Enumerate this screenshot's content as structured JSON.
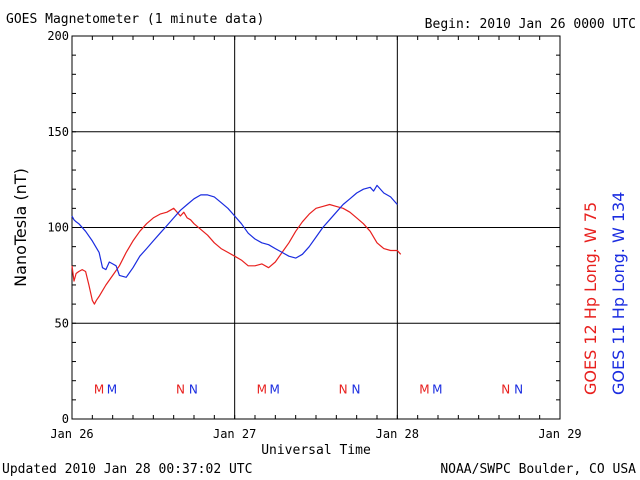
{
  "chart_data": {
    "type": "line",
    "title": "GOES Magnetometer (1 minute data)",
    "begin_label": "Begin:  2010 Jan 26 0000 UTC",
    "xlabel": "Universal Time",
    "ylabel": "NanoTesla (nT)",
    "xlim": [
      0,
      72
    ],
    "x_unit": "hours since 2010 Jan 26 0000 UTC",
    "x_tick_values": [
      0,
      24,
      48,
      72
    ],
    "x_tick_labels": [
      "Jan 26",
      "Jan 27",
      "Jan 28",
      "Jan 29"
    ],
    "ylim": [
      0,
      200
    ],
    "y_ticks": [
      0,
      50,
      100,
      150,
      200
    ],
    "grid": true,
    "series": [
      {
        "name": "GOES 12 Hp  Long. W 75",
        "color": "#e8201e",
        "x": [
          0,
          0.3,
          0.6,
          1,
          1.5,
          2,
          2.5,
          3,
          3.3,
          3.6,
          4,
          4.5,
          5,
          6,
          7,
          8,
          9,
          10,
          11,
          12,
          13,
          14,
          15,
          16,
          16.5,
          17,
          17.5,
          18,
          19,
          20,
          21,
          22,
          23,
          24,
          25,
          26,
          27,
          28,
          29,
          30,
          31,
          32,
          33,
          34,
          35,
          36,
          37,
          38,
          39,
          40,
          41,
          42,
          43,
          44,
          45,
          46,
          47,
          48,
          48.5
        ],
        "values": [
          80,
          72,
          76,
          77,
          78,
          77,
          70,
          62,
          60,
          62,
          64,
          67,
          70,
          75,
          80,
          87,
          93,
          98,
          102,
          105,
          107,
          108,
          110,
          106,
          108,
          105,
          104,
          102,
          99,
          96,
          92,
          89,
          87,
          85,
          83,
          80,
          80,
          81,
          79,
          82,
          87,
          92,
          98,
          103,
          107,
          110,
          111,
          112,
          111,
          110,
          108,
          105,
          102,
          98,
          92,
          89,
          88,
          88,
          86
        ]
      },
      {
        "name": "GOES 11 Hp  Long. W 134",
        "color": "#1a2ce0",
        "x": [
          0,
          0.3,
          0.6,
          1,
          2,
          3,
          4,
          4.5,
          5,
          5.5,
          6,
          6.5,
          7,
          8,
          9,
          10,
          11,
          12,
          13,
          14,
          15,
          16,
          17,
          18,
          19,
          20,
          21,
          22,
          23,
          24,
          25,
          26,
          27,
          28,
          29,
          30,
          31,
          32,
          33,
          34,
          35,
          36,
          37,
          38,
          39,
          40,
          41,
          42,
          43,
          44,
          44.5,
          45,
          46,
          47,
          48
        ],
        "values": [
          106,
          104,
          103,
          102,
          98,
          93,
          87,
          79,
          78,
          82,
          81,
          80,
          75,
          74,
          79,
          85,
          89,
          93,
          97,
          101,
          105,
          109,
          112,
          115,
          117,
          117,
          116,
          113,
          110,
          106,
          102,
          97,
          94,
          92,
          91,
          89,
          87,
          85,
          84,
          86,
          90,
          95,
          100,
          104,
          108,
          112,
          115,
          118,
          120,
          121,
          119,
          122,
          118,
          116,
          112
        ]
      }
    ],
    "side_labels": [
      {
        "text": "GOES 12 Hp  Long. W 75",
        "color": "#e8201e"
      },
      {
        "text": "GOES 11 Hp  Long. W 134",
        "color": "#1a2ce0"
      }
    ],
    "markers": [
      {
        "text": "M",
        "x": 4,
        "color": "#e8201e"
      },
      {
        "text": "M",
        "x": 5.9,
        "color": "#1a2ce0"
      },
      {
        "text": "N",
        "x": 16,
        "color": "#e8201e"
      },
      {
        "text": "N",
        "x": 17.9,
        "color": "#1a2ce0"
      },
      {
        "text": "M",
        "x": 28,
        "color": "#e8201e"
      },
      {
        "text": "M",
        "x": 29.9,
        "color": "#1a2ce0"
      },
      {
        "text": "N",
        "x": 40,
        "color": "#e8201e"
      },
      {
        "text": "N",
        "x": 41.9,
        "color": "#1a2ce0"
      },
      {
        "text": "M",
        "x": 52,
        "color": "#e8201e"
      },
      {
        "text": "M",
        "x": 53.9,
        "color": "#1a2ce0"
      },
      {
        "text": "N",
        "x": 64,
        "color": "#e8201e"
      },
      {
        "text": "N",
        "x": 65.9,
        "color": "#1a2ce0"
      }
    ],
    "marker_y": 16,
    "updated_label": "Updated 2010 Jan 28 00:37:02 UTC",
    "credit_label": "NOAA/SWPC Boulder, CO USA"
  }
}
